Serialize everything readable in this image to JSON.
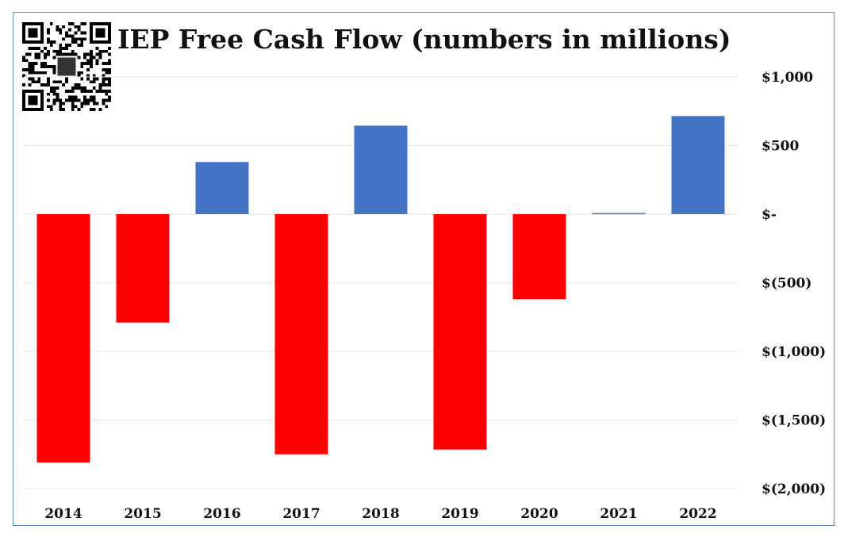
{
  "chart_data": {
    "type": "bar",
    "title": "IEP Free Cash Flow (numbers in millions)",
    "xlabel": "",
    "ylabel": "",
    "categories": [
      "2014",
      "2015",
      "2016",
      "2017",
      "2018",
      "2019",
      "2020",
      "2021",
      "2022"
    ],
    "values": [
      -1810,
      -790,
      380,
      -1750,
      645,
      -1715,
      -620,
      8,
      715
    ],
    "ylim": [
      -2000,
      1000
    ],
    "yticks": [
      1000,
      500,
      0,
      -500,
      -1000,
      -1500,
      -2000
    ],
    "ytick_labels": [
      "$1,000",
      "$500",
      "$-",
      "$(500)",
      "$(1,000)",
      "$(1,500)",
      "$(2,000)"
    ],
    "grid": true,
    "legend": "none",
    "colors": {
      "positive": "#4472c4",
      "negative": "#ff0000",
      "grid": "#e6e6e6"
    }
  }
}
